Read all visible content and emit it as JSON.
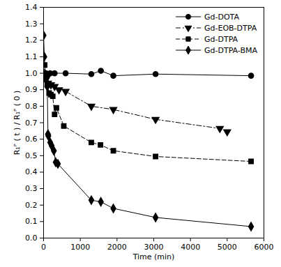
{
  "chart_data": {
    "type": "line",
    "x_label": "Time (min)",
    "y_label": "R₁ᴾ ( t ) / R₁ᴾ ( 0 )",
    "xlim": [
      0,
      6000
    ],
    "xticks": [
      0,
      1000,
      2000,
      3000,
      4000,
      5000,
      6000
    ],
    "ylim": [
      0,
      1.4
    ],
    "yticks": [
      {
        "value": 0,
        "label": "0.0"
      },
      {
        "value": 0.1,
        "label": "0.1"
      },
      {
        "value": 0.2,
        "label": "0.2"
      },
      {
        "value": 0.3,
        "label": "0.3"
      },
      {
        "value": 0.4,
        "label": "0.4"
      },
      {
        "value": 0.5,
        "label": "0.5"
      },
      {
        "value": 0.6,
        "label": "0.6"
      },
      {
        "value": 0.7,
        "label": "0.7"
      },
      {
        "value": 0.8,
        "label": "0.8"
      },
      {
        "value": 0.9,
        "label": "0.9"
      },
      {
        "value": 1,
        "label": "1.0"
      },
      {
        "value": 1.1,
        "label": "1.1"
      },
      {
        "value": 1.2,
        "label": "1.2"
      },
      {
        "value": 1.3,
        "label": "1.3"
      },
      {
        "value": 1.4,
        "label": "1.4"
      }
    ],
    "legend": "top-right",
    "series": [
      {
        "name": "Gd-DOTA",
        "color": "#000000",
        "marker": "circle",
        "line_style": "solid",
        "x": [
          0,
          30,
          60,
          120,
          180,
          300,
          600,
          1300,
          1560,
          1900,
          3050,
          5650
        ],
        "values": [
          1.0,
          1.0,
          1.0,
          0.99,
          1.0,
          1.0,
          1.0,
          0.995,
          1.015,
          0.985,
          0.995,
          0.985
        ]
      },
      {
        "name": "Gd-EOB-DTPA",
        "color": "#000000",
        "marker": "triangle-down",
        "line_style": "dashdot",
        "x": [
          0,
          30,
          60,
          120,
          200,
          300,
          420,
          600,
          1300,
          1900,
          3050,
          4800,
          5000
        ],
        "values": [
          1.0,
          0.98,
          0.96,
          0.94,
          0.93,
          0.92,
          0.9,
          0.89,
          0.8,
          0.78,
          0.72,
          0.665,
          0.645
        ]
      },
      {
        "name": "Gd-DTPA",
        "color": "#000000",
        "marker": "square",
        "line_style": "dashed",
        "x": [
          0,
          30,
          60,
          100,
          150,
          200,
          250,
          300,
          350,
          550,
          1300,
          1550,
          1900,
          3050,
          5650
        ],
        "values": [
          1.0,
          1.05,
          0.97,
          0.93,
          0.88,
          0.87,
          0.86,
          0.75,
          0.79,
          0.68,
          0.58,
          0.565,
          0.53,
          0.495,
          0.465
        ]
      },
      {
        "name": "Gd-DTPA-BMA",
        "color": "#000000",
        "marker": "diamond",
        "line_style": "solid",
        "x": [
          0,
          20,
          50,
          100,
          120,
          130,
          180,
          220,
          280,
          330,
          390,
          1300,
          1560,
          1900,
          3050,
          5650
        ],
        "values": [
          1.23,
          1.1,
          0.99,
          0.92,
          0.63,
          0.62,
          0.58,
          0.56,
          0.53,
          0.46,
          0.45,
          0.23,
          0.22,
          0.18,
          0.125,
          0.07
        ]
      }
    ]
  }
}
